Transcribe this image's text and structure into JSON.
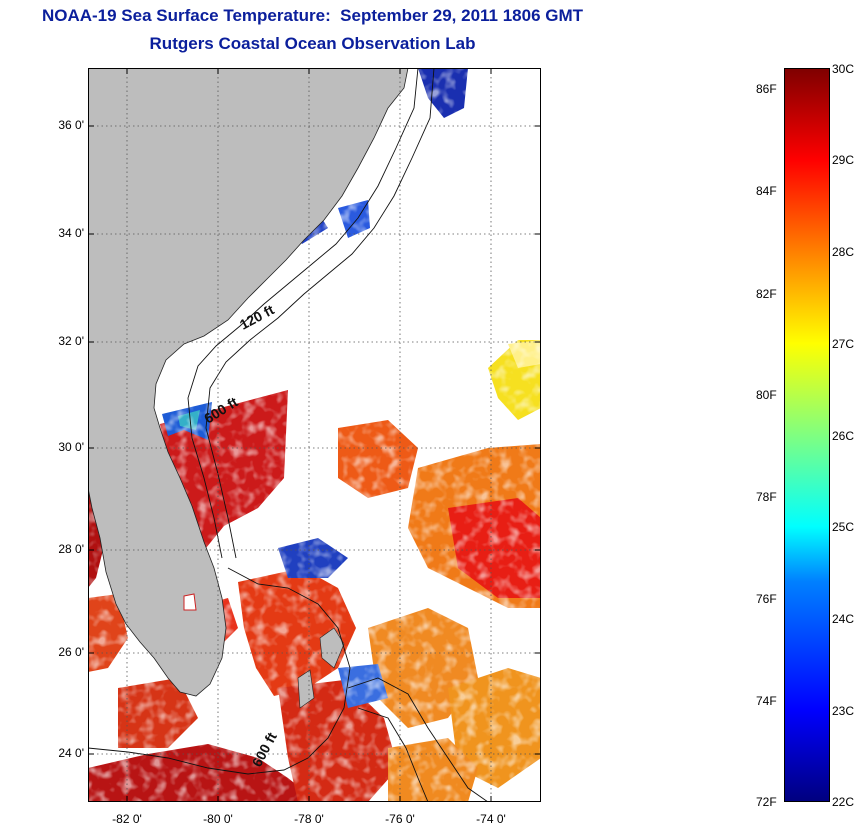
{
  "header": {
    "title": "NOAA-19 Sea Surface Temperature:  September 29, 2011 1806 GMT",
    "subtitle": "Rutgers Coastal Ocean Observation Lab"
  },
  "map": {
    "lat_ticks": [
      "36 0'",
      "34 0'",
      "32 0'",
      "30 0'",
      "28 0'",
      "26 0'",
      "24 0'"
    ],
    "lon_ticks": [
      "-82 0'",
      "-80 0'",
      "-78 0'",
      "-76 0'",
      "-74 0'"
    ],
    "lat_range": [
      23,
      37
    ],
    "lon_range": [
      -83,
      -73
    ],
    "contour_labels": [
      "120 ft",
      "600 ft",
      "600 ft"
    ],
    "land_color": "#bcbcbc"
  },
  "colorbar": {
    "fahrenheit_labels": [
      "86F",
      "84F",
      "82F",
      "80F",
      "78F",
      "76F",
      "74F",
      "72F"
    ],
    "celsius_labels": [
      "30C",
      "29C",
      "28C",
      "27C",
      "26C",
      "25C",
      "24C",
      "23C",
      "22C"
    ],
    "range_c": [
      22,
      30
    ],
    "colors": [
      "#00007f",
      "#0000ff",
      "#0080ff",
      "#00ffff",
      "#80ff80",
      "#ffff00",
      "#ff8000",
      "#ff0000",
      "#7f0000"
    ]
  }
}
